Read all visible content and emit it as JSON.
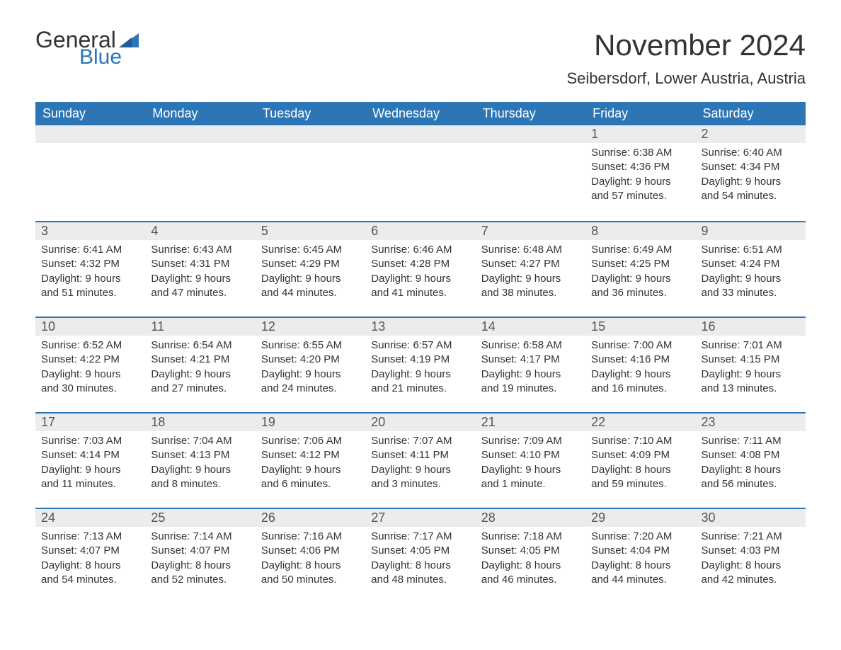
{
  "logo": {
    "text_general": "General",
    "text_blue": "Blue",
    "flag_color": "#2d76b6"
  },
  "header": {
    "title": "November 2024",
    "location": "Seibersdorf, Lower Austria, Austria"
  },
  "colors": {
    "header_bg": "#2d76b6",
    "header_text": "#ffffff",
    "day_bg": "#ececec",
    "border": "#2d76b6",
    "text": "#333333"
  },
  "weekdays": [
    "Sunday",
    "Monday",
    "Tuesday",
    "Wednesday",
    "Thursday",
    "Friday",
    "Saturday"
  ],
  "weeks": [
    [
      null,
      null,
      null,
      null,
      null,
      {
        "day": "1",
        "sunrise": "Sunrise: 6:38 AM",
        "sunset": "Sunset: 4:36 PM",
        "daylight1": "Daylight: 9 hours",
        "daylight2": "and 57 minutes."
      },
      {
        "day": "2",
        "sunrise": "Sunrise: 6:40 AM",
        "sunset": "Sunset: 4:34 PM",
        "daylight1": "Daylight: 9 hours",
        "daylight2": "and 54 minutes."
      }
    ],
    [
      {
        "day": "3",
        "sunrise": "Sunrise: 6:41 AM",
        "sunset": "Sunset: 4:32 PM",
        "daylight1": "Daylight: 9 hours",
        "daylight2": "and 51 minutes."
      },
      {
        "day": "4",
        "sunrise": "Sunrise: 6:43 AM",
        "sunset": "Sunset: 4:31 PM",
        "daylight1": "Daylight: 9 hours",
        "daylight2": "and 47 minutes."
      },
      {
        "day": "5",
        "sunrise": "Sunrise: 6:45 AM",
        "sunset": "Sunset: 4:29 PM",
        "daylight1": "Daylight: 9 hours",
        "daylight2": "and 44 minutes."
      },
      {
        "day": "6",
        "sunrise": "Sunrise: 6:46 AM",
        "sunset": "Sunset: 4:28 PM",
        "daylight1": "Daylight: 9 hours",
        "daylight2": "and 41 minutes."
      },
      {
        "day": "7",
        "sunrise": "Sunrise: 6:48 AM",
        "sunset": "Sunset: 4:27 PM",
        "daylight1": "Daylight: 9 hours",
        "daylight2": "and 38 minutes."
      },
      {
        "day": "8",
        "sunrise": "Sunrise: 6:49 AM",
        "sunset": "Sunset: 4:25 PM",
        "daylight1": "Daylight: 9 hours",
        "daylight2": "and 36 minutes."
      },
      {
        "day": "9",
        "sunrise": "Sunrise: 6:51 AM",
        "sunset": "Sunset: 4:24 PM",
        "daylight1": "Daylight: 9 hours",
        "daylight2": "and 33 minutes."
      }
    ],
    [
      {
        "day": "10",
        "sunrise": "Sunrise: 6:52 AM",
        "sunset": "Sunset: 4:22 PM",
        "daylight1": "Daylight: 9 hours",
        "daylight2": "and 30 minutes."
      },
      {
        "day": "11",
        "sunrise": "Sunrise: 6:54 AM",
        "sunset": "Sunset: 4:21 PM",
        "daylight1": "Daylight: 9 hours",
        "daylight2": "and 27 minutes."
      },
      {
        "day": "12",
        "sunrise": "Sunrise: 6:55 AM",
        "sunset": "Sunset: 4:20 PM",
        "daylight1": "Daylight: 9 hours",
        "daylight2": "and 24 minutes."
      },
      {
        "day": "13",
        "sunrise": "Sunrise: 6:57 AM",
        "sunset": "Sunset: 4:19 PM",
        "daylight1": "Daylight: 9 hours",
        "daylight2": "and 21 minutes."
      },
      {
        "day": "14",
        "sunrise": "Sunrise: 6:58 AM",
        "sunset": "Sunset: 4:17 PM",
        "daylight1": "Daylight: 9 hours",
        "daylight2": "and 19 minutes."
      },
      {
        "day": "15",
        "sunrise": "Sunrise: 7:00 AM",
        "sunset": "Sunset: 4:16 PM",
        "daylight1": "Daylight: 9 hours",
        "daylight2": "and 16 minutes."
      },
      {
        "day": "16",
        "sunrise": "Sunrise: 7:01 AM",
        "sunset": "Sunset: 4:15 PM",
        "daylight1": "Daylight: 9 hours",
        "daylight2": "and 13 minutes."
      }
    ],
    [
      {
        "day": "17",
        "sunrise": "Sunrise: 7:03 AM",
        "sunset": "Sunset: 4:14 PM",
        "daylight1": "Daylight: 9 hours",
        "daylight2": "and 11 minutes."
      },
      {
        "day": "18",
        "sunrise": "Sunrise: 7:04 AM",
        "sunset": "Sunset: 4:13 PM",
        "daylight1": "Daylight: 9 hours",
        "daylight2": "and 8 minutes."
      },
      {
        "day": "19",
        "sunrise": "Sunrise: 7:06 AM",
        "sunset": "Sunset: 4:12 PM",
        "daylight1": "Daylight: 9 hours",
        "daylight2": "and 6 minutes."
      },
      {
        "day": "20",
        "sunrise": "Sunrise: 7:07 AM",
        "sunset": "Sunset: 4:11 PM",
        "daylight1": "Daylight: 9 hours",
        "daylight2": "and 3 minutes."
      },
      {
        "day": "21",
        "sunrise": "Sunrise: 7:09 AM",
        "sunset": "Sunset: 4:10 PM",
        "daylight1": "Daylight: 9 hours",
        "daylight2": "and 1 minute."
      },
      {
        "day": "22",
        "sunrise": "Sunrise: 7:10 AM",
        "sunset": "Sunset: 4:09 PM",
        "daylight1": "Daylight: 8 hours",
        "daylight2": "and 59 minutes."
      },
      {
        "day": "23",
        "sunrise": "Sunrise: 7:11 AM",
        "sunset": "Sunset: 4:08 PM",
        "daylight1": "Daylight: 8 hours",
        "daylight2": "and 56 minutes."
      }
    ],
    [
      {
        "day": "24",
        "sunrise": "Sunrise: 7:13 AM",
        "sunset": "Sunset: 4:07 PM",
        "daylight1": "Daylight: 8 hours",
        "daylight2": "and 54 minutes."
      },
      {
        "day": "25",
        "sunrise": "Sunrise: 7:14 AM",
        "sunset": "Sunset: 4:07 PM",
        "daylight1": "Daylight: 8 hours",
        "daylight2": "and 52 minutes."
      },
      {
        "day": "26",
        "sunrise": "Sunrise: 7:16 AM",
        "sunset": "Sunset: 4:06 PM",
        "daylight1": "Daylight: 8 hours",
        "daylight2": "and 50 minutes."
      },
      {
        "day": "27",
        "sunrise": "Sunrise: 7:17 AM",
        "sunset": "Sunset: 4:05 PM",
        "daylight1": "Daylight: 8 hours",
        "daylight2": "and 48 minutes."
      },
      {
        "day": "28",
        "sunrise": "Sunrise: 7:18 AM",
        "sunset": "Sunset: 4:05 PM",
        "daylight1": "Daylight: 8 hours",
        "daylight2": "and 46 minutes."
      },
      {
        "day": "29",
        "sunrise": "Sunrise: 7:20 AM",
        "sunset": "Sunset: 4:04 PM",
        "daylight1": "Daylight: 8 hours",
        "daylight2": "and 44 minutes."
      },
      {
        "day": "30",
        "sunrise": "Sunrise: 7:21 AM",
        "sunset": "Sunset: 4:03 PM",
        "daylight1": "Daylight: 8 hours",
        "daylight2": "and 42 minutes."
      }
    ]
  ]
}
